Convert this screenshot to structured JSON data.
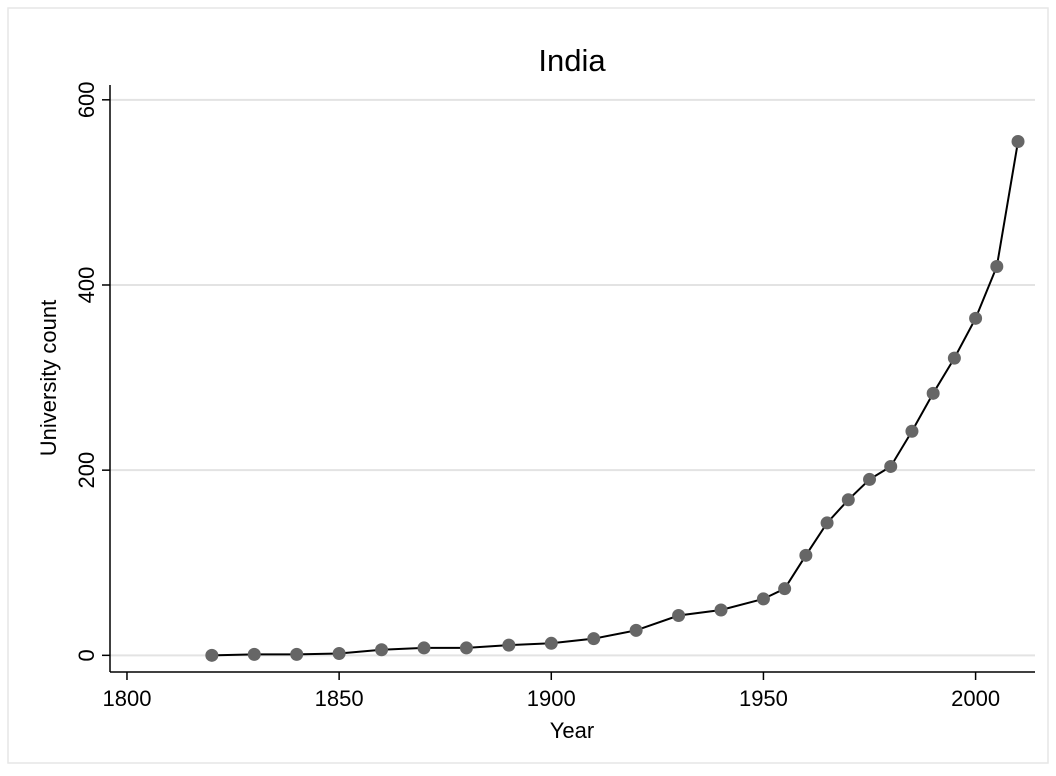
{
  "chart_data": {
    "type": "line",
    "title": "India",
    "x_label": "Year",
    "y_label": "University count",
    "x": [
      1820,
      1830,
      1840,
      1850,
      1860,
      1870,
      1880,
      1890,
      1900,
      1910,
      1920,
      1930,
      1940,
      1950,
      1955,
      1960,
      1965,
      1970,
      1975,
      1980,
      1985,
      1990,
      1995,
      2000,
      2005,
      2010
    ],
    "series": [
      {
        "name": "University count",
        "color": "#000000",
        "marker_color": "#666666",
        "values": [
          0,
          1,
          1,
          2,
          6,
          8,
          8,
          11,
          13,
          18,
          27,
          43,
          49,
          61,
          72,
          108,
          143,
          168,
          190,
          204,
          242,
          283,
          321,
          364,
          420,
          555
        ]
      }
    ],
    "xlim": [
      1796,
      2014
    ],
    "ylim": [
      -18,
      616
    ],
    "xticks": [
      1800,
      1850,
      1900,
      1950,
      2000
    ],
    "yticks": [
      0,
      200,
      400,
      600
    ],
    "grid": true
  }
}
